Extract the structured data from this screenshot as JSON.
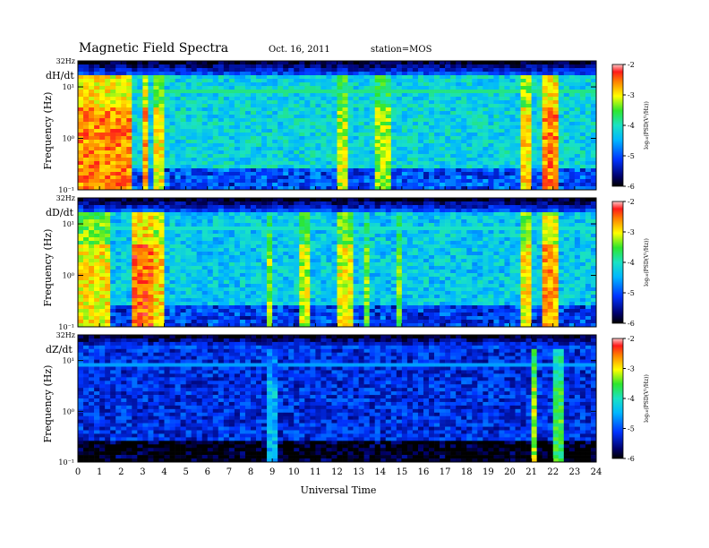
{
  "header": {
    "title": "Magnetic Field Spectra",
    "date": "Oct. 16, 2011",
    "station": "station=MOS"
  },
  "chart_data": {
    "type": "heatmap",
    "title": "Magnetic Field Spectra",
    "xlabel": "Universal Time",
    "x_ticks": [
      "0",
      "1",
      "2",
      "3",
      "4",
      "5",
      "6",
      "7",
      "8",
      "9",
      "10",
      "11",
      "12",
      "13",
      "14",
      "15",
      "16",
      "17",
      "18",
      "19",
      "20",
      "21",
      "22",
      "23",
      "24"
    ],
    "xlim": [
      0,
      24
    ],
    "ylabel": "Frequency (Hz)",
    "y_scale": "log",
    "y_ticks": [
      "10⁻¹",
      "10⁰",
      "10¹"
    ],
    "y_top_label": "32Hz",
    "colorbar": {
      "label": "log₁₀(PSD(V²/Hz))",
      "ticks": [
        "-2",
        "-3",
        "-4",
        "-5",
        "-6"
      ],
      "range": [
        -6,
        -2
      ]
    },
    "panels": [
      {
        "name": "dH/dt",
        "base_level": -4.2,
        "line_level": -3.8,
        "bursts": [
          [
            0.0,
            2.6,
            -2.6
          ],
          [
            2.9,
            3.3,
            -2.7
          ],
          [
            3.5,
            4.1,
            -3.0
          ],
          [
            12.0,
            12.6,
            -3.2
          ],
          [
            13.8,
            14.4,
            -3.3
          ],
          [
            20.6,
            21.0,
            -2.9
          ],
          [
            21.4,
            22.2,
            -2.6
          ]
        ]
      },
      {
        "name": "dD/dt",
        "base_level": -4.3,
        "line_level": -4.0,
        "bursts": [
          [
            0.0,
            1.6,
            -3.0
          ],
          [
            2.4,
            3.4,
            -2.5
          ],
          [
            3.5,
            4.1,
            -2.9
          ],
          [
            8.8,
            9.1,
            -3.3
          ],
          [
            10.3,
            10.7,
            -3.2
          ],
          [
            12.0,
            12.8,
            -3.1
          ],
          [
            13.3,
            13.6,
            -3.4
          ],
          [
            14.8,
            15.1,
            -3.4
          ],
          [
            20.5,
            21.0,
            -3.0
          ],
          [
            21.6,
            22.3,
            -2.7
          ]
        ]
      },
      {
        "name": "dZ/dt",
        "base_level": -5.2,
        "line_level": -4.6,
        "bursts": [
          [
            8.7,
            9.2,
            -4.4
          ],
          [
            21.0,
            21.2,
            -3.2
          ],
          [
            22.0,
            22.4,
            -3.6
          ]
        ]
      }
    ]
  }
}
